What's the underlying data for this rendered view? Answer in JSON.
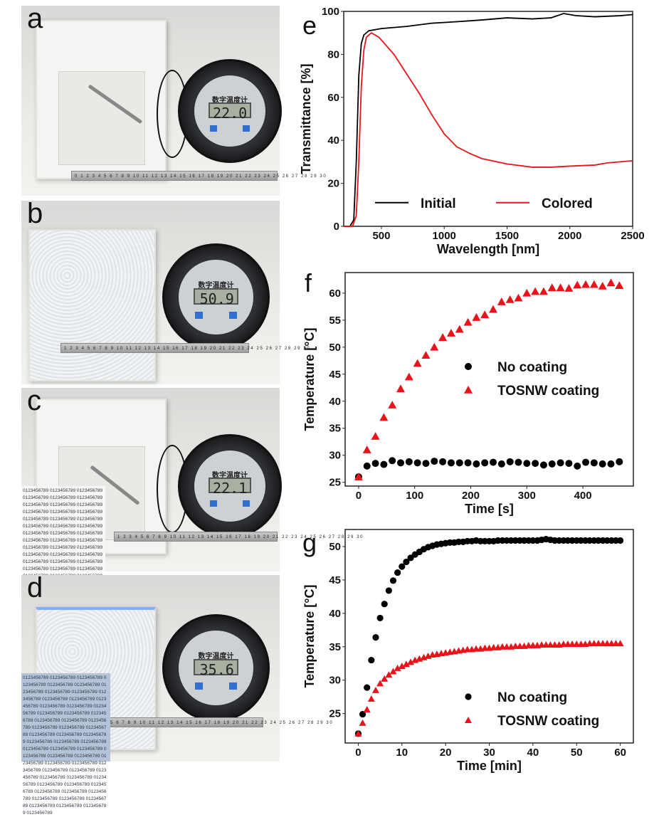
{
  "photos": [
    {
      "label": "a",
      "meter_title": "数字温度计",
      "reading": "22.0",
      "ruler": "0 1 2 3 4 5 6 7 8 9 10 11 12 13 14 15 16 17 18 19 20 21 22 23 24 25 26 27 28 29 30"
    },
    {
      "label": "b",
      "meter_title": "数字温度计",
      "reading": "50.9",
      "ruler": "1 2 3 4 5 6 7 8 9 10 11 12 13 14 15 16 17 18 19 20 21 22 23 24 25 26 27 28 29 30"
    },
    {
      "label": "c",
      "meter_title": "数字温度计",
      "reading": "22.1",
      "ruler": "1 2 3 4 5 6 7 8 9 10 11 12 13 14 15 16 17 18 19 20 21 22 23 24 25 26 27 28 29 30",
      "sheet_text": "0123456789"
    },
    {
      "label": "d",
      "meter_title": "数字温度计",
      "reading": "35.6",
      "ruler": "5 6 7 8 9 10 11 12 13 14 15 16 17 18 19 20 21 22 23 24 25 26 27 28 29 30",
      "sheet_text": "0123456789"
    }
  ],
  "chart_data": [
    {
      "panel": "e",
      "type": "line",
      "xlabel": "Wavelength [nm]",
      "ylabel": "Transmittance [%]",
      "xlim": [
        200,
        2500
      ],
      "ylim": [
        0,
        100
      ],
      "xticks": [
        500,
        1000,
        1500,
        2000,
        2500
      ],
      "yticks": [
        0,
        20,
        40,
        60,
        80,
        100
      ],
      "legend_position": "bottom",
      "series": [
        {
          "name": "Initial",
          "color": "#000000",
          "points": [
            [
              200,
              0
            ],
            [
              250,
              0
            ],
            [
              280,
              3
            ],
            [
              300,
              30
            ],
            [
              320,
              70
            ],
            [
              340,
              85
            ],
            [
              360,
              89
            ],
            [
              400,
              91
            ],
            [
              500,
              92
            ],
            [
              700,
              93
            ],
            [
              900,
              94.5
            ],
            [
              1100,
              95.2
            ],
            [
              1300,
              96
            ],
            [
              1400,
              96.5
            ],
            [
              1500,
              97
            ],
            [
              1700,
              96.5
            ],
            [
              1850,
              97
            ],
            [
              1950,
              99
            ],
            [
              2050,
              98
            ],
            [
              2200,
              97.5
            ],
            [
              2400,
              98
            ],
            [
              2500,
              98.5
            ]
          ]
        },
        {
          "name": "Colored",
          "color": "#e8141a",
          "points": [
            [
              200,
              0
            ],
            [
              270,
              0
            ],
            [
              300,
              5
            ],
            [
              320,
              30
            ],
            [
              340,
              65
            ],
            [
              360,
              82
            ],
            [
              380,
              88
            ],
            [
              420,
              90
            ],
            [
              480,
              88
            ],
            [
              600,
              80
            ],
            [
              700,
              71
            ],
            [
              800,
              62
            ],
            [
              900,
              52
            ],
            [
              1000,
              43
            ],
            [
              1100,
              37
            ],
            [
              1200,
              34
            ],
            [
              1300,
              31.5
            ],
            [
              1500,
              29
            ],
            [
              1700,
              27.5
            ],
            [
              1850,
              27.5
            ],
            [
              2000,
              28
            ],
            [
              2200,
              28.5
            ],
            [
              2300,
              29.5
            ],
            [
              2500,
              30.5
            ]
          ]
        }
      ]
    },
    {
      "panel": "f",
      "type": "scatter",
      "xlabel": "Time [s]",
      "ylabel": "Temperature [°C]",
      "xlim": [
        -24,
        490
      ],
      "ylim": [
        24.3,
        63.8
      ],
      "xticks": [
        0,
        100,
        200,
        300,
        400
      ],
      "yticks": [
        25,
        30,
        35,
        40,
        45,
        50,
        55,
        60
      ],
      "legend_position": "center-right",
      "x_start": 0,
      "x_step": 15,
      "series": [
        {
          "name": "No coating",
          "marker": "circle",
          "color": "#000000",
          "values": [
            26,
            28,
            28.5,
            28.3,
            29,
            28.6,
            28.8,
            28.6,
            28.5,
            28.9,
            28.8,
            28.6,
            28.6,
            28.6,
            28.4,
            28.6,
            28.7,
            28.4,
            28.8,
            28.7,
            28.5,
            28.5,
            28.2,
            28.4,
            28.6,
            28.5,
            28,
            28.7,
            28.6,
            28.4,
            28.4,
            28.8
          ]
        },
        {
          "name": "TOSNW coating",
          "marker": "triangle",
          "color": "#e8141a",
          "values": [
            26,
            31,
            33.5,
            37,
            39.3,
            42.3,
            44.5,
            47,
            48.5,
            50,
            51.8,
            52.6,
            53.3,
            54.6,
            55.5,
            56,
            57,
            58.4,
            58.8,
            59.1,
            60,
            60.3,
            60.3,
            61,
            61,
            60.9,
            61.5,
            61.6,
            61.6,
            61.3,
            61.9,
            61.4
          ]
        }
      ]
    },
    {
      "panel": "g",
      "type": "scatter",
      "xlabel": "Time [min]",
      "ylabel": "Temperature [°C]",
      "xlim": [
        -3,
        63
      ],
      "ylim": [
        20.6,
        52.55
      ],
      "xticks": [
        0,
        10,
        20,
        30,
        40,
        50,
        60
      ],
      "yticks": [
        25,
        30,
        35,
        40,
        45,
        50
      ],
      "legend_position": "bottom-right",
      "x_start": 0,
      "x_step": 1,
      "series": [
        {
          "name": "No coating",
          "marker": "circle",
          "color": "#000000",
          "values": [
            22,
            24.9,
            28.9,
            33,
            36.4,
            39.3,
            41.4,
            43.4,
            44.9,
            46.1,
            47,
            47.7,
            48.3,
            48.8,
            49.2,
            49.6,
            49.9,
            50.1,
            50.3,
            50.4,
            50.5,
            50.6,
            50.6,
            50.7,
            50.7,
            50.8,
            50.8,
            50.9,
            50.8,
            50.8,
            50.8,
            50.8,
            50.9,
            50.9,
            50.9,
            50.9,
            50.9,
            50.9,
            50.9,
            50.9,
            50.9,
            50.9,
            51,
            51.1,
            51,
            50.9,
            50.9,
            50.9,
            50.9,
            50.9,
            50.9,
            50.9,
            50.9,
            50.9,
            50.9,
            50.9,
            50.9,
            50.9,
            50.9,
            50.9,
            50.9
          ]
        },
        {
          "name": "TOSNW coating",
          "marker": "triangle",
          "color": "#e8141a",
          "values": [
            22,
            23.6,
            25.6,
            27.2,
            28.5,
            29.5,
            30.2,
            30.8,
            31.3,
            31.8,
            32.1,
            32.4,
            32.7,
            33,
            33.2,
            33.4,
            33.6,
            33.8,
            33.9,
            34,
            34.1,
            34.2,
            34.3,
            34.4,
            34.5,
            34.6,
            34.6,
            34.7,
            34.7,
            34.8,
            34.8,
            34.9,
            34.9,
            35,
            35,
            35,
            35.1,
            35.1,
            35.1,
            35.2,
            35.2,
            35.2,
            35.3,
            35.3,
            35.3,
            35.3,
            35.3,
            35.4,
            35.4,
            35.4,
            35.4,
            35.4,
            35.4,
            35.5,
            35.5,
            35.5,
            35.5,
            35.5,
            35.5,
            35.5,
            35.5
          ]
        }
      ]
    }
  ]
}
